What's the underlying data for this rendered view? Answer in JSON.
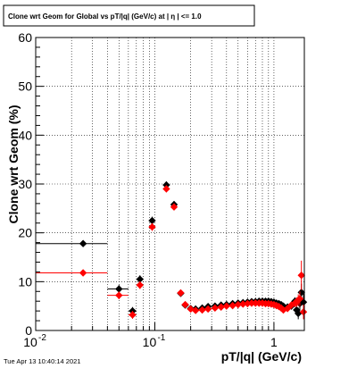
{
  "chart_data": {
    "type": "scatter",
    "title": "Clone wrt Geom for Global vs pT/|q| (GeV/c) at |  η | <= 1.0",
    "xlabel": "pT/|q| (GeV/c)",
    "ylabel": "Clone wrt Geom (%)",
    "xscale": "log",
    "xlim": [
      0.01,
      1.8
    ],
    "ylim": [
      0,
      60
    ],
    "x_tick_labels": [
      "10",
      "10",
      "1"
    ],
    "x_tick_exponents": [
      "-2",
      "-1",
      ""
    ],
    "y_ticks": [
      "0",
      "10",
      "20",
      "30",
      "40",
      "50",
      "60"
    ],
    "grid": true,
    "series": [
      {
        "color": "#000000",
        "points": [
          {
            "x": 0.025,
            "y": 17.8,
            "xlo": 0.01,
            "xhi": 0.04,
            "err": 0.5
          },
          {
            "x": 0.05,
            "y": 8.5,
            "xlo": 0.04,
            "xhi": 0.06,
            "err": 0.8
          },
          {
            "x": 0.065,
            "y": 4.0,
            "xlo": 0.06,
            "xhi": 0.07,
            "err": 0.8
          },
          {
            "x": 0.075,
            "y": 10.5,
            "xlo": 0.07,
            "xhi": 0.08,
            "err": 0.8
          },
          {
            "x": 0.095,
            "y": 22.5,
            "xlo": 0.09,
            "xhi": 0.1,
            "err": 0.8
          },
          {
            "x": 0.125,
            "y": 29.8,
            "xlo": 0.12,
            "xhi": 0.13,
            "err": 0.7
          },
          {
            "x": 0.145,
            "y": 25.8,
            "xlo": 0.14,
            "xhi": 0.15,
            "err": 0.7
          },
          {
            "x": 0.165,
            "y": 7.6,
            "err": 0.4
          },
          {
            "x": 0.18,
            "y": 5.2,
            "err": 0.3
          },
          {
            "x": 0.2,
            "y": 4.5,
            "err": 0.3
          },
          {
            "x": 0.22,
            "y": 4.4,
            "err": 0.3
          },
          {
            "x": 0.25,
            "y": 4.6,
            "err": 0.3
          },
          {
            "x": 0.28,
            "y": 4.9,
            "err": 0.3
          },
          {
            "x": 0.32,
            "y": 5.0,
            "err": 0.3
          },
          {
            "x": 0.36,
            "y": 5.2,
            "err": 0.3
          },
          {
            "x": 0.4,
            "y": 5.3,
            "err": 0.3
          },
          {
            "x": 0.45,
            "y": 5.5,
            "err": 0.3
          },
          {
            "x": 0.5,
            "y": 5.6,
            "err": 0.3
          },
          {
            "x": 0.55,
            "y": 5.7,
            "err": 0.3
          },
          {
            "x": 0.6,
            "y": 5.8,
            "err": 0.3
          },
          {
            "x": 0.65,
            "y": 5.9,
            "err": 0.3
          },
          {
            "x": 0.7,
            "y": 5.9,
            "err": 0.3
          },
          {
            "x": 0.75,
            "y": 6.0,
            "err": 0.3
          },
          {
            "x": 0.8,
            "y": 6.0,
            "err": 0.3
          },
          {
            "x": 0.85,
            "y": 6.0,
            "err": 0.4
          },
          {
            "x": 0.9,
            "y": 6.0,
            "err": 0.4
          },
          {
            "x": 0.95,
            "y": 5.9,
            "err": 0.4
          },
          {
            "x": 1.0,
            "y": 5.8,
            "err": 0.4
          },
          {
            "x": 1.05,
            "y": 5.6,
            "err": 0.4
          },
          {
            "x": 1.1,
            "y": 5.5,
            "err": 0.5
          },
          {
            "x": 1.15,
            "y": 5.3,
            "err": 0.5
          },
          {
            "x": 1.2,
            "y": 5.0,
            "err": 0.5
          },
          {
            "x": 1.3,
            "y": 4.8,
            "err": 0.6
          },
          {
            "x": 1.4,
            "y": 5.0,
            "err": 0.7
          },
          {
            "x": 1.5,
            "y": 6.0,
            "err": 0.8
          },
          {
            "x": 1.55,
            "y": 4.2,
            "err": 1.0
          },
          {
            "x": 1.6,
            "y": 3.5,
            "err": 1.2
          },
          {
            "x": 1.65,
            "y": 5.5,
            "err": 1.5
          },
          {
            "x": 1.7,
            "y": 7.8,
            "err": 1.8
          },
          {
            "x": 1.77,
            "y": 5.8,
            "err": 2.0
          }
        ]
      },
      {
        "color": "#ff0000",
        "points": [
          {
            "x": 0.025,
            "y": 11.8,
            "xlo": 0.01,
            "xhi": 0.04,
            "err": 0.5
          },
          {
            "x": 0.05,
            "y": 7.2,
            "xlo": 0.04,
            "xhi": 0.06,
            "err": 0.8
          },
          {
            "x": 0.065,
            "y": 3.2,
            "xlo": 0.06,
            "xhi": 0.07,
            "err": 0.8
          },
          {
            "x": 0.075,
            "y": 9.3,
            "xlo": 0.07,
            "xhi": 0.08,
            "err": 0.8
          },
          {
            "x": 0.095,
            "y": 21.2,
            "xlo": 0.09,
            "xhi": 0.1,
            "err": 0.8
          },
          {
            "x": 0.125,
            "y": 29.0,
            "xlo": 0.12,
            "xhi": 0.13,
            "err": 0.7
          },
          {
            "x": 0.145,
            "y": 25.3,
            "xlo": 0.14,
            "xhi": 0.15,
            "err": 0.7
          },
          {
            "x": 0.165,
            "y": 7.7,
            "err": 0.4
          },
          {
            "x": 0.18,
            "y": 5.3,
            "err": 0.3
          },
          {
            "x": 0.2,
            "y": 4.4,
            "err": 0.3
          },
          {
            "x": 0.22,
            "y": 4.1,
            "err": 0.3
          },
          {
            "x": 0.25,
            "y": 4.2,
            "err": 0.3
          },
          {
            "x": 0.28,
            "y": 4.4,
            "err": 0.3
          },
          {
            "x": 0.32,
            "y": 4.6,
            "err": 0.3
          },
          {
            "x": 0.36,
            "y": 4.8,
            "err": 0.3
          },
          {
            "x": 0.4,
            "y": 5.0,
            "err": 0.3
          },
          {
            "x": 0.45,
            "y": 5.1,
            "err": 0.3
          },
          {
            "x": 0.5,
            "y": 5.3,
            "err": 0.3
          },
          {
            "x": 0.55,
            "y": 5.4,
            "err": 0.3
          },
          {
            "x": 0.6,
            "y": 5.5,
            "err": 0.3
          },
          {
            "x": 0.65,
            "y": 5.6,
            "err": 0.3
          },
          {
            "x": 0.7,
            "y": 5.6,
            "err": 0.3
          },
          {
            "x": 0.75,
            "y": 5.6,
            "err": 0.3
          },
          {
            "x": 0.8,
            "y": 5.6,
            "err": 0.3
          },
          {
            "x": 0.85,
            "y": 5.5,
            "err": 0.4
          },
          {
            "x": 0.9,
            "y": 5.5,
            "err": 0.4
          },
          {
            "x": 0.95,
            "y": 5.4,
            "err": 0.4
          },
          {
            "x": 1.0,
            "y": 5.3,
            "err": 0.4
          },
          {
            "x": 1.05,
            "y": 5.1,
            "err": 0.4
          },
          {
            "x": 1.1,
            "y": 4.9,
            "err": 0.5
          },
          {
            "x": 1.15,
            "y": 4.6,
            "err": 0.5
          },
          {
            "x": 1.2,
            "y": 4.2,
            "err": 0.5
          },
          {
            "x": 1.3,
            "y": 4.5,
            "err": 0.6
          },
          {
            "x": 1.4,
            "y": 5.2,
            "err": 0.7
          },
          {
            "x": 1.5,
            "y": 5.6,
            "err": 0.8
          },
          {
            "x": 1.55,
            "y": 5.8,
            "err": 1.0
          },
          {
            "x": 1.6,
            "y": 6.2,
            "err": 1.2
          },
          {
            "x": 1.65,
            "y": 6.5,
            "err": 1.5
          },
          {
            "x": 1.7,
            "y": 11.3,
            "err": 3.0
          },
          {
            "x": 1.77,
            "y": 3.8,
            "err": 1.5
          }
        ]
      }
    ]
  },
  "footer": {
    "timestamp": "Tue Apr 13 10:40:14 2021"
  }
}
